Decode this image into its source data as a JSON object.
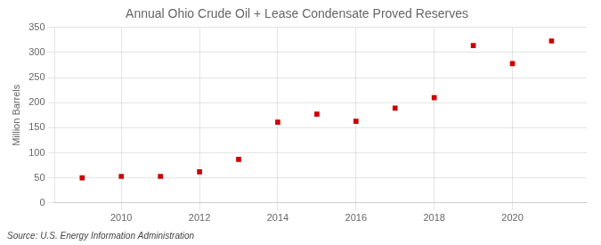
{
  "chart_data": {
    "type": "scatter",
    "title": "Annual Ohio Crude Oil + Lease Condensate Proved Reserves",
    "ylabel": "Million Barrels",
    "source": "Source: U.S. Energy Information Administration",
    "x": [
      2009,
      2010,
      2011,
      2012,
      2013,
      2014,
      2015,
      2016,
      2017,
      2018,
      2019,
      2020,
      2021
    ],
    "values": [
      50,
      53,
      53,
      62,
      87,
      161,
      177,
      163,
      189,
      210,
      314,
      278,
      323
    ],
    "xlim": [
      2008.3,
      2021.9
    ],
    "ylim": [
      0,
      350
    ],
    "xticks": [
      2010,
      2012,
      2014,
      2016,
      2018,
      2020
    ],
    "yticks": [
      0,
      50,
      100,
      150,
      200,
      250,
      300,
      350
    ],
    "color": "#cc0000",
    "marker": "square",
    "grid": true
  }
}
